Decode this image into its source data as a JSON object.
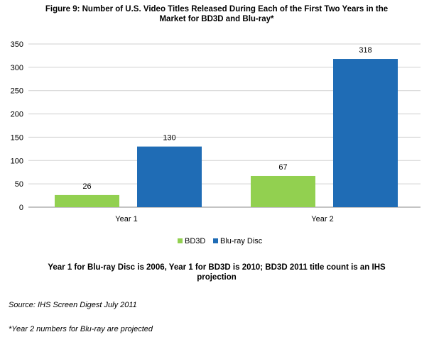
{
  "chart_data": {
    "type": "bar",
    "title": "Figure 9: Number of U.S. Video Titles Released During Each of the First Two Years in the Market for BD3D and Blu-ray*",
    "categories": [
      "Year 1",
      "Year 2"
    ],
    "series": [
      {
        "name": "BD3D",
        "values": [
          26,
          67
        ],
        "color": "#92d050"
      },
      {
        "name": "Blu-ray Disc",
        "values": [
          130,
          318
        ],
        "color": "#1f6cb5"
      }
    ],
    "ylim": [
      0,
      350
    ],
    "yticks": [
      0,
      50,
      100,
      150,
      200,
      250,
      300,
      350
    ],
    "xlabel": "",
    "ylabel": "",
    "grid": true,
    "legend": "bottom-center"
  },
  "note": "Year 1 for Blu-ray Disc is 2006, Year 1 for BD3D is 2010; BD3D 2011 title count is an IHS projection",
  "source": "Source: IHS Screen Digest July 2011",
  "footnote": "*Year 2 numbers for Blu-ray are projected"
}
